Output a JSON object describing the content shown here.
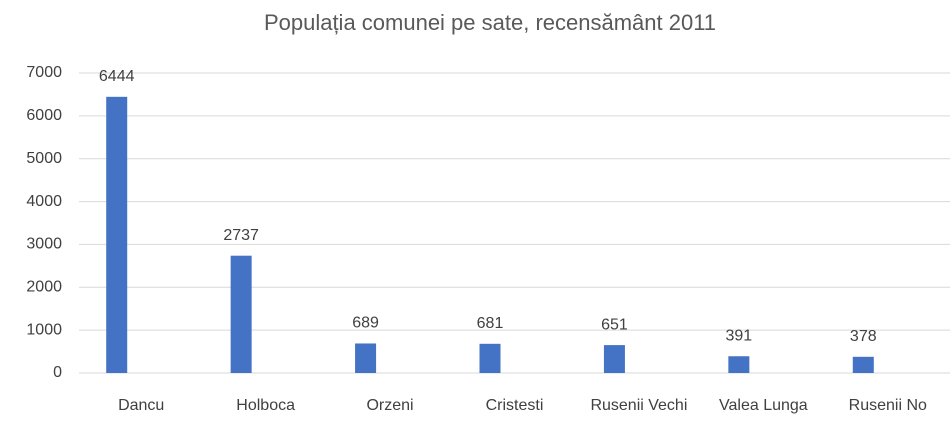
{
  "chart_data": {
    "type": "bar",
    "title": "Populația comunei pe sate, recensământ 2011",
    "categories": [
      "Dancu",
      "Holboca",
      "Orzeni",
      "Cristesti",
      "Rusenii Vechi",
      "Valea Lunga",
      "Rusenii No"
    ],
    "values": [
      6444,
      2737,
      689,
      681,
      651,
      391,
      378
    ],
    "color": "#4472c4",
    "ylim": [
      0,
      7000
    ],
    "yticks": [
      0,
      1000,
      2000,
      3000,
      4000,
      5000,
      6000,
      7000
    ],
    "grid": true
  }
}
